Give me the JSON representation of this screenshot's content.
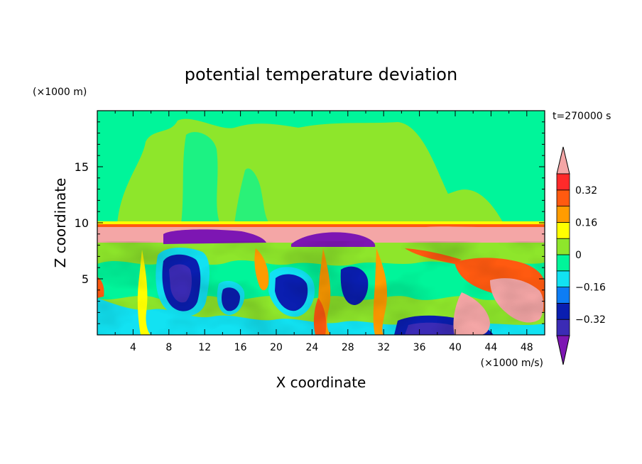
{
  "chart_data": {
    "type": "heatmap",
    "title": "potential temperature deviation",
    "xlabel": "X coordinate",
    "ylabel": "Z coordinate",
    "x_unit": "(×1000 m/s)",
    "y_unit": "(×1000 m)",
    "time_label": "t=270000 s",
    "xlim": [
      0,
      50
    ],
    "ylim": [
      0,
      20
    ],
    "x_ticks": [
      4,
      8,
      12,
      16,
      20,
      24,
      28,
      32,
      36,
      40,
      44,
      48
    ],
    "x_tick_labels": [
      "4",
      "8",
      "12",
      "16",
      "20",
      "24",
      "28",
      "32",
      "36",
      "40",
      "44",
      "48"
    ],
    "y_ticks": [
      5,
      10,
      15
    ],
    "y_tick_labels": [
      "5",
      "10",
      "15"
    ],
    "colorbar": {
      "levels": [
        -0.4,
        -0.32,
        -0.24,
        -0.16,
        -0.08,
        0,
        0.08,
        0.16,
        0.24,
        0.32,
        0.4
      ],
      "labels": [
        {
          "value": 0.32,
          "text": "0.32"
        },
        {
          "value": 0.16,
          "text": "0.16"
        },
        {
          "value": 0,
          "text": "0"
        },
        {
          "value": -0.16,
          "text": "−0.16"
        },
        {
          "value": -0.32,
          "text": "−0.32"
        }
      ],
      "colors_low_to_high": [
        "#7d16b3",
        "#3b2bb5",
        "#0a1eb0",
        "#0d7df5",
        "#12e2f2",
        "#00f59a",
        "#8ee62b",
        "#ffff00",
        "#ff9c00",
        "#ff5a10",
        "#ff2a2a",
        "#f4a6a6"
      ]
    }
  }
}
